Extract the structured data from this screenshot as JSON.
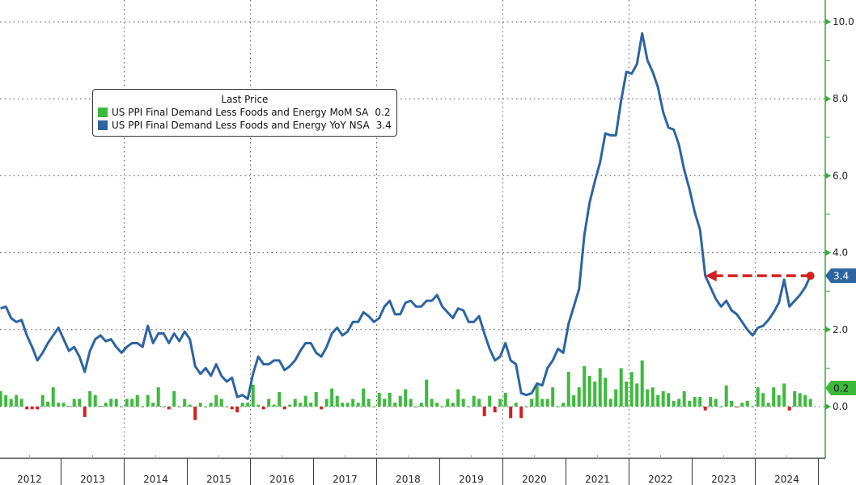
{
  "chart_data": {
    "type": "bar+line",
    "title": "",
    "xlabel": "",
    "ylabel": "",
    "ylim": [
      -1.35,
      10.5
    ],
    "y_ticks": [
      "0.0",
      "2.0",
      "4.0",
      "6.0",
      "8.0",
      "10.0"
    ],
    "x_tick_labels": [
      "2012",
      "2013",
      "2014",
      "2015",
      "2016",
      "2017",
      "2018",
      "2019",
      "2020",
      "2021",
      "2022",
      "2023",
      "2024"
    ],
    "x_start": "2012-01",
    "x_end": "2024-11",
    "frequency": "monthly",
    "grid": true,
    "legend": {
      "title": "Last Price",
      "placement": "top-left",
      "entries": [
        {
          "name": "US PPI Final Demand Less Foods and Energy MoM SA",
          "last": "0.2",
          "color": "#3dba3d"
        },
        {
          "name": "US PPI Final Demand Less Foods and Energy YoY NSA",
          "last": "3.4",
          "color": "#2e64a0"
        }
      ]
    },
    "series": [
      {
        "name": "US PPI Final Demand Less Foods and Energy MoM SA",
        "type": "bar",
        "positive_color": "#3dba3d",
        "negative_color": "#d42020",
        "values": [
          0.4,
          0.3,
          0.2,
          0.3,
          0.2,
          -0.07,
          -0.07,
          -0.07,
          0.3,
          0.13,
          0.5,
          0.1,
          0.1,
          0.02,
          0.2,
          0.2,
          -0.27,
          0.4,
          0.3,
          0.02,
          0.1,
          0.2,
          0.2,
          0,
          0.2,
          0.2,
          0.3,
          0,
          0.3,
          0.1,
          0.5,
          0,
          -0.07,
          0.4,
          0,
          0.2,
          0.05,
          -0.35,
          0.1,
          0,
          0.1,
          0.3,
          0.2,
          0,
          -0.07,
          -0.15,
          0.1,
          0.1,
          0.57,
          0.05,
          -0.07,
          0.2,
          0.05,
          0.38,
          -0.07,
          0.05,
          0.2,
          0.1,
          0.28,
          0.1,
          0.38,
          -0.07,
          0.2,
          0.47,
          0.28,
          0.1,
          0.1,
          0.2,
          0.1,
          0.47,
          0.2,
          0,
          0.36,
          0.2,
          0.36,
          0.1,
          0.28,
          0.45,
          0.2,
          0,
          0.1,
          0.7,
          0.2,
          0.1,
          0,
          0.2,
          0.1,
          0.45,
          0.2,
          0,
          0.28,
          0.2,
          -0.25,
          0.28,
          -0.15,
          0.2,
          0.36,
          -0.3,
          0.1,
          -0.3,
          0,
          0.2,
          0.55,
          0.2,
          0.2,
          0.5,
          0,
          0.1,
          0.9,
          0.3,
          0.5,
          1.05,
          0.8,
          0.65,
          1.0,
          0.75,
          0.2,
          0.45,
          1.0,
          0.65,
          0.9,
          0.6,
          1.2,
          0.45,
          0.5,
          0.3,
          0.4,
          0.35,
          0.15,
          0.2,
          0.4,
          0.15,
          0.25,
          0.25,
          -0.1,
          0.25,
          0.2,
          0,
          0.55,
          0.15,
          -0.02,
          0.1,
          0.15,
          0,
          0.5,
          0.35,
          0.1,
          0.5,
          0.3,
          0.6,
          -0.1,
          0.4,
          0.35,
          0.3,
          0.2
        ]
      },
      {
        "name": "US PPI Final Demand Less Foods and Energy YoY NSA",
        "type": "line",
        "color": "#2e64a0",
        "values": [
          2.55,
          2.6,
          2.3,
          2.2,
          2.25,
          1.85,
          1.55,
          1.2,
          1.4,
          1.65,
          1.85,
          2.05,
          1.75,
          1.45,
          1.55,
          1.3,
          0.9,
          1.45,
          1.75,
          1.85,
          1.7,
          1.75,
          1.55,
          1.4,
          1.55,
          1.65,
          1.65,
          1.55,
          2.1,
          1.65,
          1.9,
          1.9,
          1.65,
          1.9,
          1.7,
          1.95,
          1.75,
          1.05,
          0.85,
          1.0,
          0.8,
          1.1,
          0.8,
          0.65,
          0.75,
          0.25,
          0.3,
          0.2,
          0.85,
          1.3,
          1.1,
          1.1,
          1.2,
          1.2,
          0.95,
          1.05,
          1.2,
          1.45,
          1.65,
          1.65,
          1.4,
          1.3,
          1.55,
          1.9,
          2.05,
          1.85,
          1.95,
          2.2,
          2.2,
          2.45,
          2.35,
          2.2,
          2.3,
          2.6,
          2.75,
          2.4,
          2.4,
          2.7,
          2.75,
          2.6,
          2.6,
          2.75,
          2.75,
          2.9,
          2.6,
          2.45,
          2.3,
          2.55,
          2.5,
          2.2,
          2.2,
          2.35,
          1.9,
          1.5,
          1.2,
          1.3,
          1.65,
          1.2,
          1.1,
          0.35,
          0.3,
          0.35,
          0.6,
          0.55,
          1.0,
          1.2,
          1.5,
          1.4,
          2.15,
          2.6,
          3.05,
          4.45,
          5.3,
          5.85,
          6.35,
          7.1,
          7.05,
          7.05,
          7.95,
          8.7,
          8.65,
          8.9,
          9.7,
          9.0,
          8.7,
          8.3,
          7.65,
          7.25,
          7.2,
          6.8,
          6.15,
          5.65,
          5.05,
          4.6,
          3.4,
          3.1,
          2.8,
          2.6,
          2.75,
          2.5,
          2.4,
          2.2,
          2.0,
          1.85,
          2.05,
          2.1,
          2.25,
          2.45,
          2.7,
          3.3,
          2.6,
          2.75,
          2.9,
          3.1,
          3.4
        ]
      }
    ],
    "annotations": [
      {
        "type": "dashed-arrow",
        "color": "#d42020",
        "from_value": 3.4,
        "to_date": "2023-03",
        "direction": "left"
      }
    ],
    "last_value_tags": [
      {
        "text": "3.4",
        "color": "#2e64a0"
      },
      {
        "text": "0.2",
        "color": "#3dba3d"
      }
    ]
  }
}
